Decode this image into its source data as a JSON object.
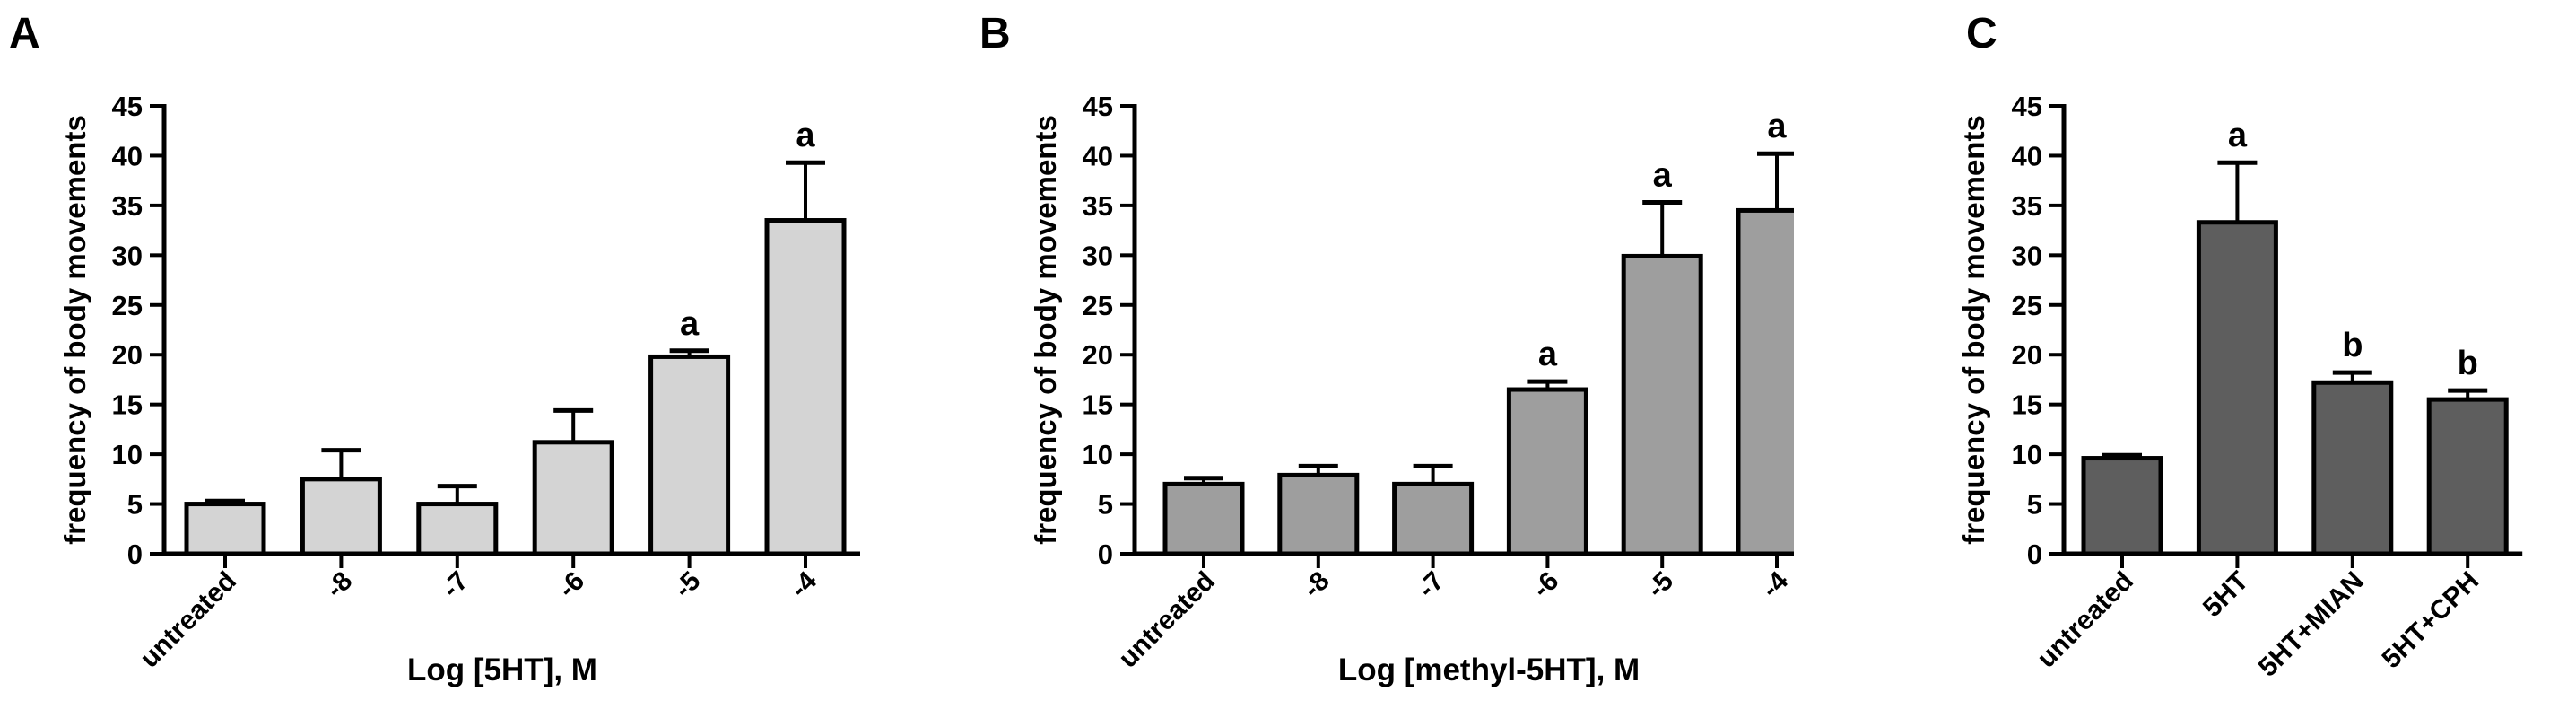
{
  "chart_data": [
    {
      "panel_label": "A",
      "type": "bar",
      "categories": [
        "untreated",
        "-8",
        "-7",
        "-6",
        "-5",
        "-4"
      ],
      "values": [
        5,
        7.5,
        5,
        11.2,
        19.8,
        33.5
      ],
      "errors": [
        0.3,
        2.9,
        1.8,
        3.2,
        0.6,
        5.8
      ],
      "annotations": [
        "",
        "",
        "",
        "",
        "a",
        "a"
      ],
      "xlabel": "Log [5HT], M",
      "ylabel": "frequency of body movements",
      "ylim": [
        0,
        45
      ],
      "yticks": [
        0,
        5,
        10,
        15,
        20,
        25,
        30,
        35,
        40,
        45
      ],
      "bar_color": "#d4d4d4",
      "grid": false
    },
    {
      "panel_label": "B",
      "type": "bar",
      "categories": [
        "untreated",
        "-8",
        "-7",
        "-6",
        "-5",
        "-4"
      ],
      "values": [
        7,
        7.9,
        7,
        16.5,
        29.9,
        34.5
      ],
      "errors": [
        0.6,
        0.9,
        1.8,
        0.8,
        5.4,
        5.7
      ],
      "annotations": [
        "",
        "",
        "",
        "a",
        "a",
        "a"
      ],
      "xlabel": "Log [methyl-5HT], M",
      "ylabel": "frequency of body movements",
      "ylim": [
        0,
        45
      ],
      "yticks": [
        0,
        5,
        10,
        15,
        20,
        25,
        30,
        35,
        40,
        45
      ],
      "bar_color": "#9e9e9e",
      "grid": false
    },
    {
      "panel_label": "C",
      "type": "bar",
      "categories": [
        "untreated",
        "5HT",
        "5HT+MIAN",
        "5HT+CPH"
      ],
      "values": [
        9.6,
        33.3,
        17.2,
        15.5
      ],
      "errors": [
        0.3,
        6,
        1,
        0.9
      ],
      "annotations": [
        "",
        "a",
        "b",
        "b"
      ],
      "xlabel": "",
      "ylabel": "frequency of body movements",
      "ylim": [
        0,
        45
      ],
      "yticks": [
        0,
        5,
        10,
        15,
        20,
        25,
        30,
        35,
        40,
        45
      ],
      "bar_color": "#5e5e5e",
      "grid": false
    }
  ]
}
